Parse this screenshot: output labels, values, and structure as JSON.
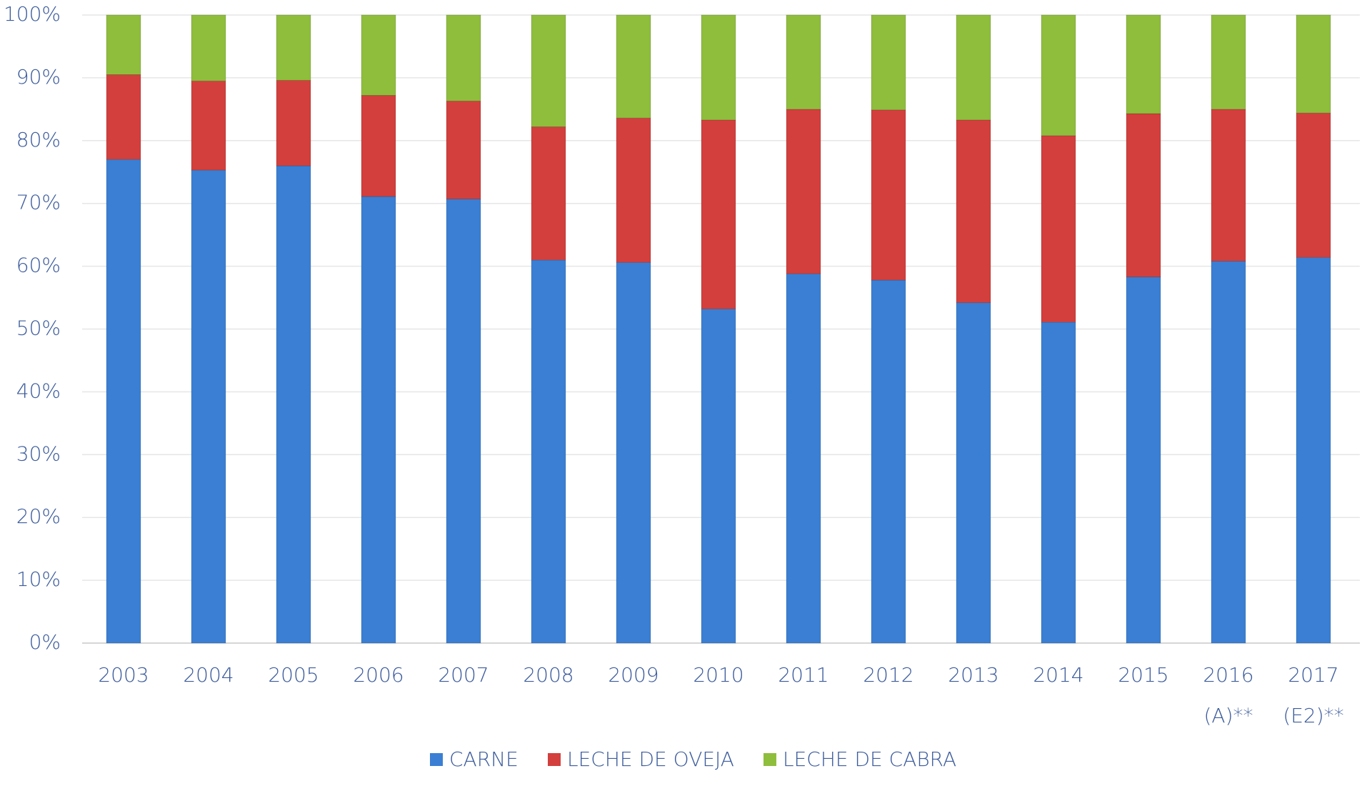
{
  "chart_data": {
    "type": "stacked-bar",
    "categories": [
      "2003",
      "2004",
      "2005",
      "2006",
      "2007",
      "2008",
      "2009",
      "2010",
      "2011",
      "2012",
      "2013",
      "2014",
      "2015",
      "2016 (A)**",
      "2017 (E2)**"
    ],
    "series": [
      {
        "name": "CARNE",
        "color": "#3a7fd4",
        "values": [
          77,
          75.3,
          76,
          71.1,
          70.7,
          61,
          60.6,
          53.2,
          58.8,
          57.8,
          54.2,
          51.1,
          58.3,
          60.8,
          61.4
        ]
      },
      {
        "name": "LECHE DE OVEJA",
        "color": "#d33f3c",
        "values": [
          13.5,
          14.2,
          13.6,
          16.1,
          15.6,
          21.2,
          23,
          30.1,
          26.2,
          27.1,
          29.1,
          29.7,
          26,
          24.2,
          23
        ]
      },
      {
        "name": "LECHE DE CABRA",
        "color": "#8fbe3c",
        "values": [
          9.5,
          10.5,
          10.4,
          12.8,
          13.7,
          17.8,
          16.4,
          16.7,
          15,
          15.1,
          16.7,
          19.2,
          15.7,
          15,
          15.6
        ]
      }
    ],
    "ylim": [
      0,
      100
    ],
    "yticks": [
      {
        "value": 0,
        "label": "0%"
      },
      {
        "value": 10,
        "label": "10%"
      },
      {
        "value": 20,
        "label": "20%"
      },
      {
        "value": 30,
        "label": "30%"
      },
      {
        "value": 40,
        "label": "40%"
      },
      {
        "value": 50,
        "label": "50%"
      },
      {
        "value": 60,
        "label": "60%"
      },
      {
        "value": 70,
        "label": "70%"
      },
      {
        "value": 80,
        "label": "80%"
      },
      {
        "value": 90,
        "label": "90%"
      },
      {
        "value": 100,
        "label": "100%"
      }
    ],
    "grid": true
  }
}
